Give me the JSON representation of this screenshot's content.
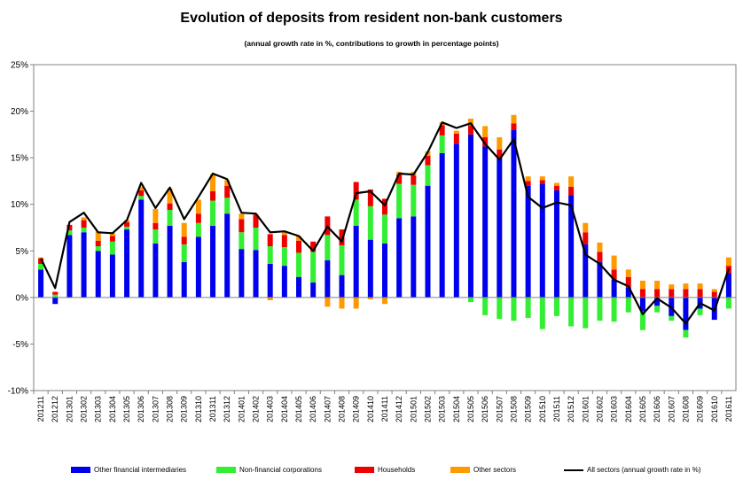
{
  "chart_data": {
    "type": "bar",
    "title": "Evolution of deposits from resident non-bank customers",
    "subtitle": "(annual growth rate in %, contributions to growth in percentage points)",
    "xlabel": "",
    "ylabel": "",
    "ylim": [
      -10,
      25
    ],
    "yticks": [
      "-10%",
      "-5%",
      "0%",
      "5%",
      "10%",
      "15%",
      "20%",
      "25%"
    ],
    "grid": false,
    "legend_position": "bottom",
    "stacked": true,
    "categories": [
      "201211",
      "201212",
      "201301",
      "201302",
      "201303",
      "201304",
      "201305",
      "201306",
      "201307",
      "201308",
      "201309",
      "201310",
      "201311",
      "201312",
      "201401",
      "201402",
      "201403",
      "201404",
      "201405",
      "201406",
      "201407",
      "201408",
      "201409",
      "201410",
      "201411",
      "201412",
      "201501",
      "201502",
      "201503",
      "201504",
      "201505",
      "201506",
      "201507",
      "201508",
      "201509",
      "201510",
      "201511",
      "201512",
      "201601",
      "201602",
      "201603",
      "201604",
      "201605",
      "201606",
      "201607",
      "201608",
      "201609",
      "201610",
      "201611"
    ],
    "series": [
      {
        "name": "Other financial intermediaries",
        "kind": "bar",
        "color": "#0000ee",
        "values": [
          3.0,
          -0.7,
          6.7,
          7.0,
          5.0,
          4.6,
          7.3,
          10.5,
          5.8,
          7.7,
          3.8,
          6.5,
          7.7,
          9.0,
          5.2,
          5.1,
          3.6,
          3.4,
          2.2,
          1.6,
          4.0,
          2.4,
          7.7,
          6.2,
          5.8,
          8.5,
          8.7,
          12.0,
          15.5,
          16.5,
          17.5,
          16.2,
          15.0,
          18.0,
          12.0,
          12.2,
          11.5,
          11.0,
          5.7,
          3.8,
          1.9,
          1.1,
          -1.5,
          -0.9,
          -2.0,
          -3.5,
          -1.2,
          -2.4,
          2.6
        ]
      },
      {
        "name": "Non-financial corporations",
        "kind": "bar",
        "color": "#33ee33",
        "values": [
          0.6,
          0.3,
          0.5,
          0.5,
          0.5,
          1.4,
          0.3,
          0.4,
          1.5,
          1.7,
          1.9,
          1.5,
          2.7,
          1.7,
          1.8,
          2.4,
          1.9,
          2.0,
          2.6,
          3.3,
          2.7,
          3.2,
          2.8,
          3.6,
          3.1,
          3.7,
          3.4,
          2.2,
          1.9,
          0.0,
          -0.5,
          -1.9,
          -2.3,
          -2.5,
          -2.2,
          -3.4,
          -2.0,
          -3.1,
          -3.3,
          -2.5,
          -2.6,
          -1.6,
          -2.0,
          -0.7,
          -0.5,
          -0.8,
          -0.7,
          0.0,
          -1.2
        ]
      },
      {
        "name": "Households",
        "kind": "bar",
        "color": "#ee0000",
        "values": [
          0.6,
          0.3,
          0.6,
          0.8,
          0.6,
          0.6,
          0.5,
          0.6,
          0.7,
          0.7,
          0.8,
          1.0,
          1.0,
          1.3,
          1.4,
          1.4,
          1.3,
          1.3,
          1.3,
          1.1,
          2.0,
          1.7,
          1.9,
          1.8,
          1.7,
          1.0,
          1.0,
          1.0,
          1.1,
          1.1,
          1.0,
          1.0,
          0.9,
          0.7,
          0.5,
          0.4,
          0.5,
          0.9,
          1.3,
          1.1,
          1.1,
          1.1,
          0.9,
          0.9,
          0.9,
          0.9,
          0.9,
          0.6,
          0.8
        ]
      },
      {
        "name": "Other sectors",
        "kind": "bar",
        "color": "#ff9900",
        "values": [
          0.1,
          0.0,
          0.0,
          0.3,
          1.0,
          0.3,
          0.2,
          0.4,
          1.5,
          1.6,
          1.5,
          1.5,
          1.8,
          0.6,
          0.6,
          0.0,
          -0.3,
          0.4,
          0.5,
          0.0,
          -1.0,
          -1.2,
          -1.2,
          -0.2,
          -0.7,
          0.3,
          0.4,
          0.5,
          0.3,
          0.3,
          0.7,
          1.2,
          1.3,
          0.9,
          0.5,
          0.4,
          0.3,
          1.1,
          1.0,
          1.0,
          1.5,
          0.8,
          0.9,
          0.9,
          0.5,
          0.6,
          0.6,
          0.3,
          0.9
        ]
      },
      {
        "name": "All sectors (annual growth rate in %)",
        "kind": "line",
        "color": "#000000",
        "values": [
          4.2,
          1.0,
          8.1,
          9.1,
          7.0,
          6.9,
          8.3,
          12.3,
          9.6,
          11.8,
          8.4,
          10.8,
          13.3,
          12.7,
          9.1,
          9.0,
          7.0,
          7.1,
          6.6,
          5.0,
          7.6,
          6.0,
          11.2,
          11.4,
          9.9,
          13.3,
          13.2,
          15.6,
          18.8,
          18.2,
          18.7,
          16.5,
          14.8,
          17.0,
          10.8,
          9.6,
          10.2,
          9.9,
          4.6,
          3.6,
          1.9,
          1.2,
          -1.8,
          -0.1,
          -1.1,
          -2.8,
          -0.6,
          -1.4,
          3.1
        ]
      }
    ]
  }
}
